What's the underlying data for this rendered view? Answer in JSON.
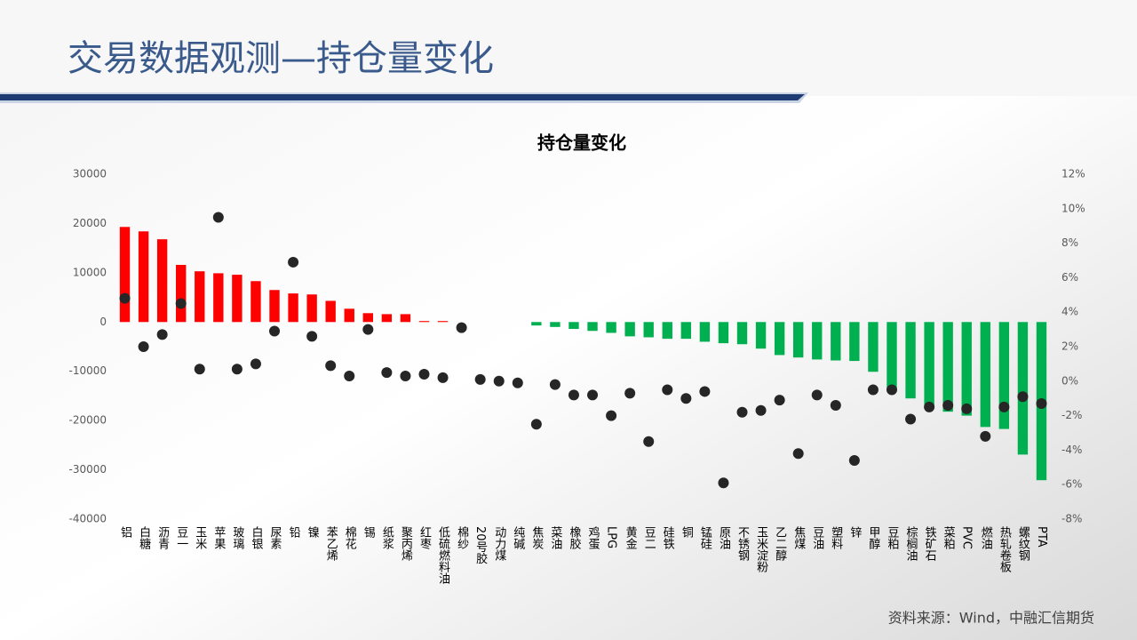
{
  "header": {
    "title": "交易数据观测—持仓量变化"
  },
  "footer": {
    "source": "资料来源：Wind，中融汇信期货"
  },
  "chart_data": {
    "type": "bar",
    "title": "持仓量变化",
    "categories": [
      "铝",
      "白糖",
      "沥青",
      "豆一",
      "玉米",
      "苹果",
      "玻璃",
      "白银",
      "尿素",
      "铅",
      "镍",
      "苯乙烯",
      "棉花",
      "锡",
      "纸浆",
      "聚丙烯",
      "红枣",
      "低硫燃料油",
      "棉纱",
      "20号胶",
      "动力煤",
      "纯碱",
      "焦炭",
      "菜油",
      "橡胶",
      "鸡蛋",
      "LPG",
      "黄金",
      "豆二",
      "硅铁",
      "铜",
      "锰硅",
      "原油",
      "不锈钢",
      "玉米淀粉",
      "乙二醇",
      "焦煤",
      "豆油",
      "塑料",
      "锌",
      "甲醇",
      "豆粕",
      "棕榈油",
      "铁矿石",
      "菜粕",
      "PVC",
      "燃油",
      "热轧卷板",
      "螺纹钢",
      "PTA"
    ],
    "series": [
      {
        "type": "bar",
        "colors": {
          "positive": "#ff0000",
          "negative": "#00b050"
        },
        "values": [
          19300,
          18400,
          16800,
          11600,
          10300,
          9900,
          9600,
          8300,
          6500,
          5800,
          5600,
          4300,
          2700,
          1800,
          1600,
          1600,
          200,
          200,
          0,
          0,
          0,
          0,
          -700,
          -1000,
          -1400,
          -1800,
          -2200,
          -2900,
          -3100,
          -3400,
          -3400,
          -4000,
          -4300,
          -4500,
          -5400,
          -6700,
          -7200,
          -7600,
          -7800,
          -7900,
          -10100,
          -13700,
          -15500,
          -17000,
          -18200,
          -19000,
          -21300,
          -21700,
          -26900,
          -32100
        ]
      },
      {
        "type": "scatter",
        "axis": "y2",
        "color": "#262626",
        "values": [
          4.8,
          2.0,
          2.7,
          4.5,
          0.7,
          9.5,
          0.7,
          1.0,
          2.9,
          6.9,
          2.6,
          0.9,
          0.3,
          3.0,
          0.5,
          0.3,
          0.4,
          0.2,
          3.1,
          0.1,
          0.0,
          -0.1,
          -2.5,
          -0.2,
          -0.8,
          -0.8,
          -2.0,
          -0.7,
          -3.5,
          -0.5,
          -1.0,
          -0.6,
          -5.9,
          -1.8,
          -1.7,
          -1.1,
          -4.2,
          -0.8,
          -1.4,
          -4.6,
          -0.5,
          -0.5,
          -2.2,
          -1.5,
          -1.4,
          -1.6,
          -3.2,
          -1.5,
          -0.9,
          -1.3
        ]
      }
    ],
    "ylim": [
      -40000,
      30000
    ],
    "yticks": [
      -40000,
      -30000,
      -20000,
      -10000,
      0,
      10000,
      20000,
      30000
    ],
    "y2lim": [
      -8,
      12
    ],
    "y2ticks": [
      {
        "value": -8,
        "label": "-8%"
      },
      {
        "value": -6,
        "label": "-6%"
      },
      {
        "value": -4,
        "label": "-4%"
      },
      {
        "value": -2,
        "label": "-2%"
      },
      {
        "value": 0,
        "label": "0%"
      },
      {
        "value": 2,
        "label": "2%"
      },
      {
        "value": 4,
        "label": "4%"
      },
      {
        "value": 6,
        "label": "6%"
      },
      {
        "value": 8,
        "label": "8%"
      },
      {
        "value": 10,
        "label": "10%"
      },
      {
        "value": 12,
        "label": "12%"
      }
    ]
  }
}
